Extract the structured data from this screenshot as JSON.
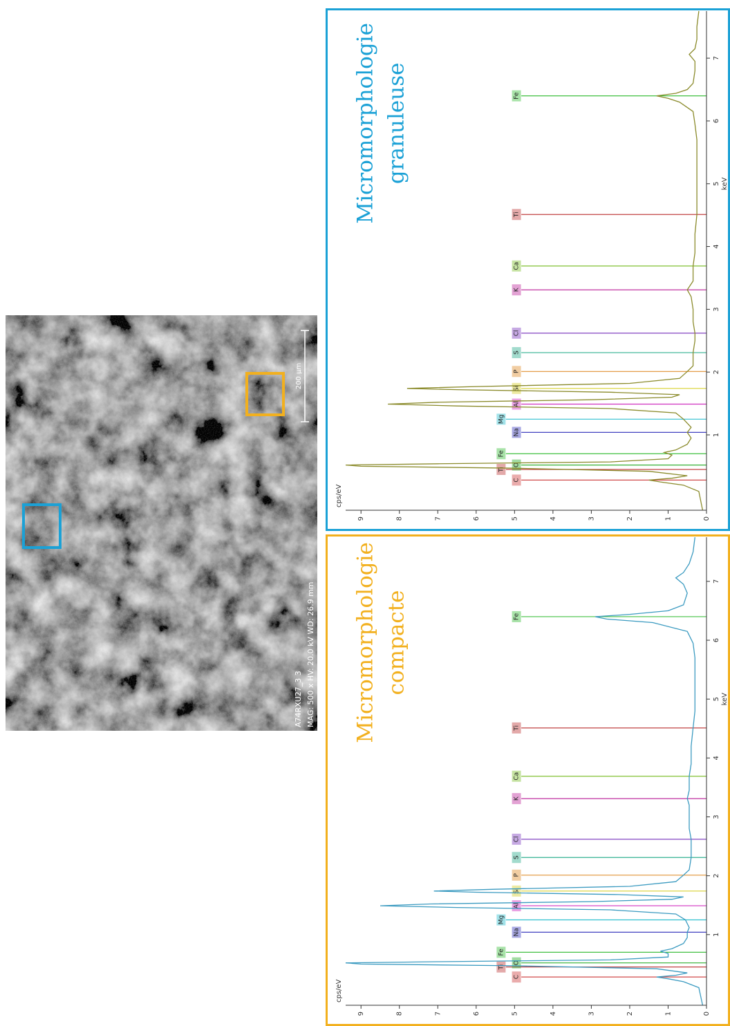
{
  "image": {
    "sample": "A74RXU27_3 3",
    "info": "MAG: 500 x  HV: 20.0 kV  WD: 26.9 mm",
    "scale": "200 µm"
  },
  "chart_data": [
    {
      "type": "line",
      "title": "Micromorphologie",
      "subtitle": "granuleuse",
      "title_color": "#1ba1d6",
      "x_label": "keV",
      "y_label": "cps/eV",
      "x": [
        -0.2,
        0.1,
        0.2,
        0.25,
        0.28,
        0.31,
        0.35,
        0.42,
        0.47,
        0.5,
        0.52,
        0.54,
        0.57,
        0.62,
        0.68,
        0.72,
        0.76,
        0.85,
        0.95,
        1.04,
        1.12,
        1.25,
        1.35,
        1.42,
        1.46,
        1.49,
        1.52,
        1.56,
        1.6,
        1.64,
        1.68,
        1.72,
        1.74,
        1.77,
        1.82,
        1.9,
        2.01,
        2.1,
        2.31,
        2.5,
        2.62,
        2.8,
        3.0,
        3.2,
        3.31,
        3.45,
        3.69,
        3.9,
        4.2,
        4.51,
        4.8,
        5.1,
        5.4,
        5.7,
        5.95,
        6.15,
        6.3,
        6.36,
        6.4,
        6.44,
        6.5,
        6.6,
        6.8,
        6.95,
        7.06,
        7.15,
        7.3,
        7.5,
        7.75
      ],
      "series": [
        {
          "color": "#8a8a2a",
          "values": [
            0.1,
            0.2,
            0.6,
            1.2,
            1.5,
            0.9,
            0.5,
            1.5,
            5,
            9,
            9.4,
            7,
            2.5,
            1.0,
            0.9,
            1.1,
            0.8,
            0.5,
            0.4,
            0.5,
            0.4,
            0.6,
            0.8,
            2.5,
            6.5,
            8.3,
            7,
            3,
            0.9,
            0.7,
            2.5,
            6.5,
            7.8,
            6,
            2,
            0.7,
            0.5,
            0.35,
            0.35,
            0.3,
            0.3,
            0.35,
            0.35,
            0.4,
            0.5,
            0.35,
            0.35,
            0.3,
            0.3,
            0.25,
            0.25,
            0.25,
            0.25,
            0.25,
            0.3,
            0.35,
            0.7,
            1.0,
            1.3,
            0.8,
            0.5,
            0.35,
            0.3,
            0.3,
            0.45,
            0.3,
            0.25,
            0.25,
            0.2
          ]
        }
      ],
      "markers": [
        {
          "label": "C",
          "energy": 0.28,
          "color": "#d04848"
        },
        {
          "label": "Ti",
          "energy": 0.45,
          "color": "#c04040"
        },
        {
          "label": "O",
          "energy": 0.52,
          "color": "#30b030"
        },
        {
          "label": "Fe",
          "energy": 0.7,
          "color": "#40c040"
        },
        {
          "label": "Na",
          "energy": 1.04,
          "color": "#4040c0"
        },
        {
          "label": "Mg",
          "energy": 1.25,
          "color": "#30c0d0"
        },
        {
          "label": "Al",
          "energy": 1.49,
          "color": "#d030c0"
        },
        {
          "label": "Si",
          "energy": 1.74,
          "color": "#d8d030"
        },
        {
          "label": "P",
          "energy": 2.01,
          "color": "#e09030"
        },
        {
          "label": "S",
          "energy": 2.31,
          "color": "#30b090"
        },
        {
          "label": "Cl",
          "energy": 2.62,
          "color": "#8040c0"
        },
        {
          "label": "K",
          "energy": 3.31,
          "color": "#c030a0"
        },
        {
          "label": "Ca",
          "energy": 3.69,
          "color": "#80c030"
        },
        {
          "label": "Ti",
          "energy": 4.51,
          "color": "#c04040"
        },
        {
          "label": "Fe",
          "energy": 6.4,
          "color": "#40c040"
        }
      ],
      "xlim": [
        -0.2,
        7.75
      ],
      "ylim": [
        0,
        9.4
      ],
      "xticks": [
        1,
        2,
        3,
        4,
        5,
        6,
        7
      ],
      "yticks": [
        0,
        1,
        2,
        3,
        4,
        5,
        6,
        7,
        8,
        9
      ]
    },
    {
      "type": "line",
      "title": "Micromorphologie",
      "subtitle": "compacte",
      "title_color": "#f2b01e",
      "x_label": "keV",
      "y_label": "cps/eV",
      "x": [
        -0.2,
        0.1,
        0.2,
        0.25,
        0.28,
        0.31,
        0.35,
        0.42,
        0.47,
        0.5,
        0.52,
        0.54,
        0.57,
        0.62,
        0.68,
        0.72,
        0.76,
        0.85,
        0.95,
        1.04,
        1.12,
        1.25,
        1.35,
        1.42,
        1.46,
        1.49,
        1.52,
        1.56,
        1.6,
        1.64,
        1.68,
        1.72,
        1.74,
        1.77,
        1.82,
        1.9,
        2.01,
        2.1,
        2.31,
        2.5,
        2.62,
        2.8,
        3.0,
        3.2,
        3.31,
        3.45,
        3.69,
        3.9,
        4.2,
        4.51,
        4.8,
        5.1,
        5.4,
        5.7,
        5.95,
        6.15,
        6.3,
        6.36,
        6.4,
        6.44,
        6.5,
        6.6,
        6.8,
        6.95,
        7.06,
        7.15,
        7.3,
        7.5,
        7.75
      ],
      "series": [
        {
          "color": "#3a9ac0",
          "values": [
            0.1,
            0.2,
            0.6,
            1.0,
            1.3,
            0.8,
            0.5,
            1.3,
            5,
            9,
            9.4,
            7,
            2.5,
            1.0,
            1.0,
            1.2,
            0.9,
            0.6,
            0.5,
            0.5,
            0.45,
            0.55,
            0.8,
            2.5,
            6.5,
            8.5,
            7.2,
            3,
            0.9,
            0.6,
            2.3,
            6,
            7.1,
            5.5,
            2,
            0.8,
            0.6,
            0.45,
            0.4,
            0.4,
            0.4,
            0.45,
            0.45,
            0.45,
            0.5,
            0.45,
            0.45,
            0.4,
            0.4,
            0.35,
            0.3,
            0.3,
            0.3,
            0.3,
            0.35,
            0.5,
            1.4,
            2.6,
            2.9,
            2.0,
            1.0,
            0.6,
            0.5,
            0.6,
            0.8,
            0.6,
            0.45,
            0.35,
            0.3
          ]
        }
      ],
      "markers": [
        {
          "label": "C",
          "energy": 0.28,
          "color": "#d04848"
        },
        {
          "label": "Ti",
          "energy": 0.45,
          "color": "#c04040"
        },
        {
          "label": "O",
          "energy": 0.52,
          "color": "#30b030"
        },
        {
          "label": "Fe",
          "energy": 0.7,
          "color": "#40c040"
        },
        {
          "label": "Na",
          "energy": 1.04,
          "color": "#4040c0"
        },
        {
          "label": "Mg",
          "energy": 1.25,
          "color": "#30c0d0"
        },
        {
          "label": "Al",
          "energy": 1.49,
          "color": "#d030c0"
        },
        {
          "label": "Si",
          "energy": 1.74,
          "color": "#d8d030"
        },
        {
          "label": "P",
          "energy": 2.01,
          "color": "#e09030"
        },
        {
          "label": "S",
          "energy": 2.31,
          "color": "#30b090"
        },
        {
          "label": "Cl",
          "energy": 2.62,
          "color": "#8040c0"
        },
        {
          "label": "K",
          "energy": 3.31,
          "color": "#c030a0"
        },
        {
          "label": "Ca",
          "energy": 3.69,
          "color": "#80c030"
        },
        {
          "label": "Ti",
          "energy": 4.51,
          "color": "#c04040"
        },
        {
          "label": "Fe",
          "energy": 6.4,
          "color": "#40c040"
        }
      ],
      "xlim": [
        -0.2,
        7.75
      ],
      "ylim": [
        0,
        9.4
      ],
      "xticks": [
        1,
        2,
        3,
        4,
        5,
        6,
        7
      ],
      "yticks": [
        0,
        1,
        2,
        3,
        4,
        5,
        6,
        7,
        8,
        9
      ]
    }
  ]
}
